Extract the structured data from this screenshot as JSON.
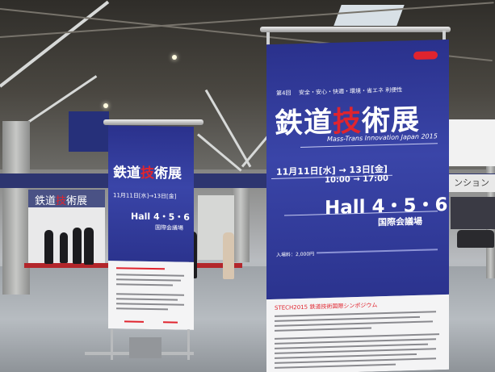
{
  "big_banner": {
    "edition": "第4回",
    "slogan": "安全・安心・快適・環境・省エネ 利便性",
    "title_a": "鉄道",
    "title_b": "技",
    "title_c": "術展",
    "subtitle": "Mass-Trans Innovation Japan 2015",
    "dates": "11月11日[水] → 13日[金]",
    "hours": "10:00 → 17:00",
    "hall": "Hall 4・5・6",
    "venue": "国際会議場",
    "admission": "入場料：2,000円",
    "symposium": "STECH2015 鉄道技術国際シンポジウム"
  },
  "small_banner": {
    "title_a": "鉄道",
    "title_b": "技",
    "title_c": "術展",
    "dates": "11月11日[水]→13日[金]",
    "hall": "Hall 4・5・6",
    "venue": "国際会議場"
  },
  "background": {
    "booth_title_a": "鉄道",
    "booth_title_b": "技",
    "booth_title_c": "術展",
    "right_sign": "ンション"
  },
  "colors": {
    "banner_blue": "#2a318c",
    "accent_red": "#e0242e"
  }
}
